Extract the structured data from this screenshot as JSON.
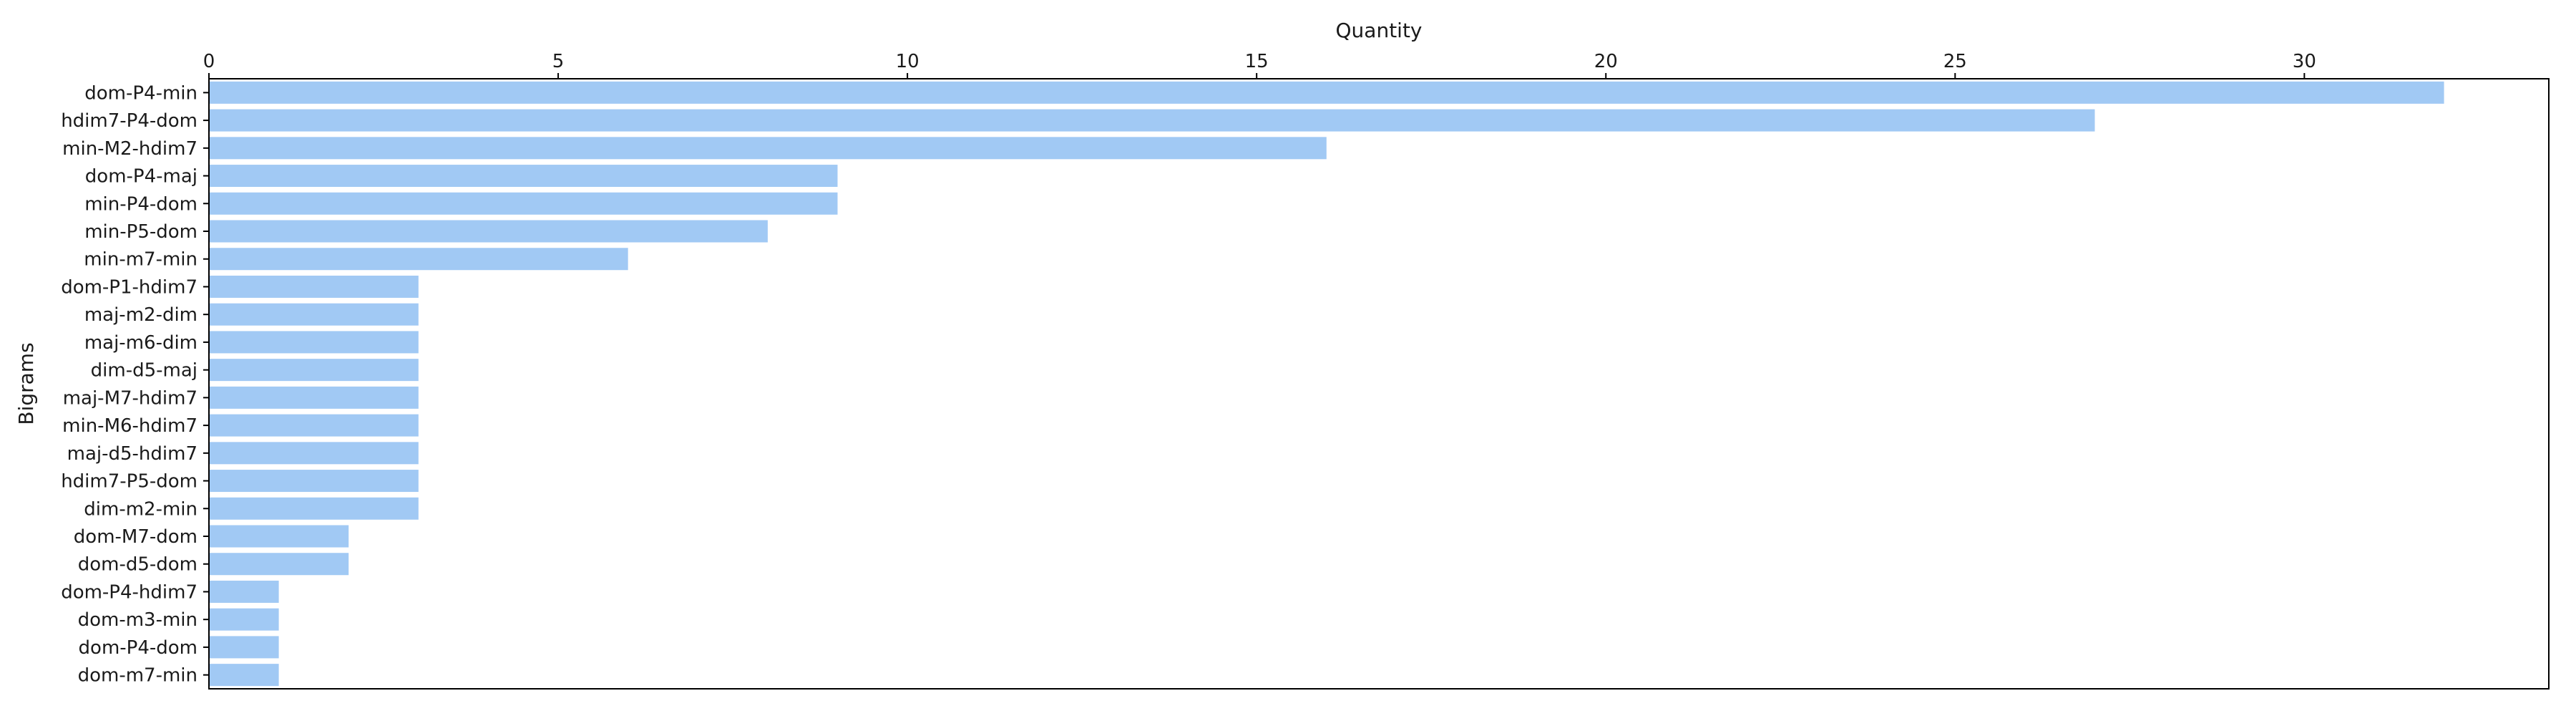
{
  "chart_data": {
    "type": "bar",
    "orientation": "horizontal",
    "xlabel": "Quantity",
    "ylabel": "Bigrams",
    "x_axis_position": "top",
    "xlim": [
      0,
      33.5
    ],
    "xticks": [
      0,
      5,
      10,
      15,
      20,
      25,
      30
    ],
    "grid": false,
    "bar_color": "#a1c9f4",
    "categories": [
      "dom-P4-min",
      "hdim7-P4-dom",
      "min-M2-hdim7",
      "dom-P4-maj",
      "min-P4-dom",
      "min-P5-dom",
      "min-m7-min",
      "dom-P1-hdim7",
      "maj-m2-dim",
      "maj-m6-dim",
      "dim-d5-maj",
      "maj-M7-hdim7",
      "min-M6-hdim7",
      "maj-d5-hdim7",
      "hdim7-P5-dom",
      "dim-m2-min",
      "dom-M7-dom",
      "dom-d5-dom",
      "dom-P4-hdim7",
      "dom-m3-min",
      "dom-P4-dom",
      "dom-m7-min"
    ],
    "values": [
      32,
      27,
      16,
      9,
      9,
      8,
      6,
      3,
      3,
      3,
      3,
      3,
      3,
      3,
      3,
      3,
      2,
      2,
      1,
      1,
      1,
      1
    ]
  }
}
